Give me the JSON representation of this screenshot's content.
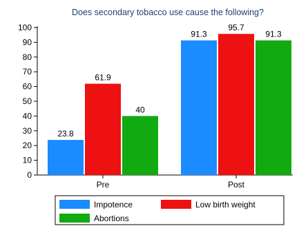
{
  "chart_data": {
    "type": "bar",
    "title": "Does secondary tobacco use cause the following?",
    "xlabel": "",
    "ylabel": "",
    "categories": [
      "Pre",
      "Post"
    ],
    "series": [
      {
        "name": "Impotence",
        "color": "#1a8cff",
        "values": [
          23.8,
          91.3
        ]
      },
      {
        "name": "Low birth weight",
        "color": "#ee1111",
        "values": [
          61.9,
          95.7
        ]
      },
      {
        "name": "Abortions",
        "color": "#11aa11",
        "values": [
          40,
          91.3
        ]
      }
    ],
    "value_labels": [
      [
        "23.8",
        "91.3"
      ],
      [
        "61.9",
        "95.7"
      ],
      [
        "40",
        "91.3"
      ]
    ],
    "ylim": [
      0,
      100
    ],
    "yticks": [
      "0",
      "10",
      "20",
      "30",
      "40",
      "50",
      "60",
      "70",
      "80",
      "90",
      "100"
    ],
    "grid": false,
    "legend_position": "bottom"
  }
}
